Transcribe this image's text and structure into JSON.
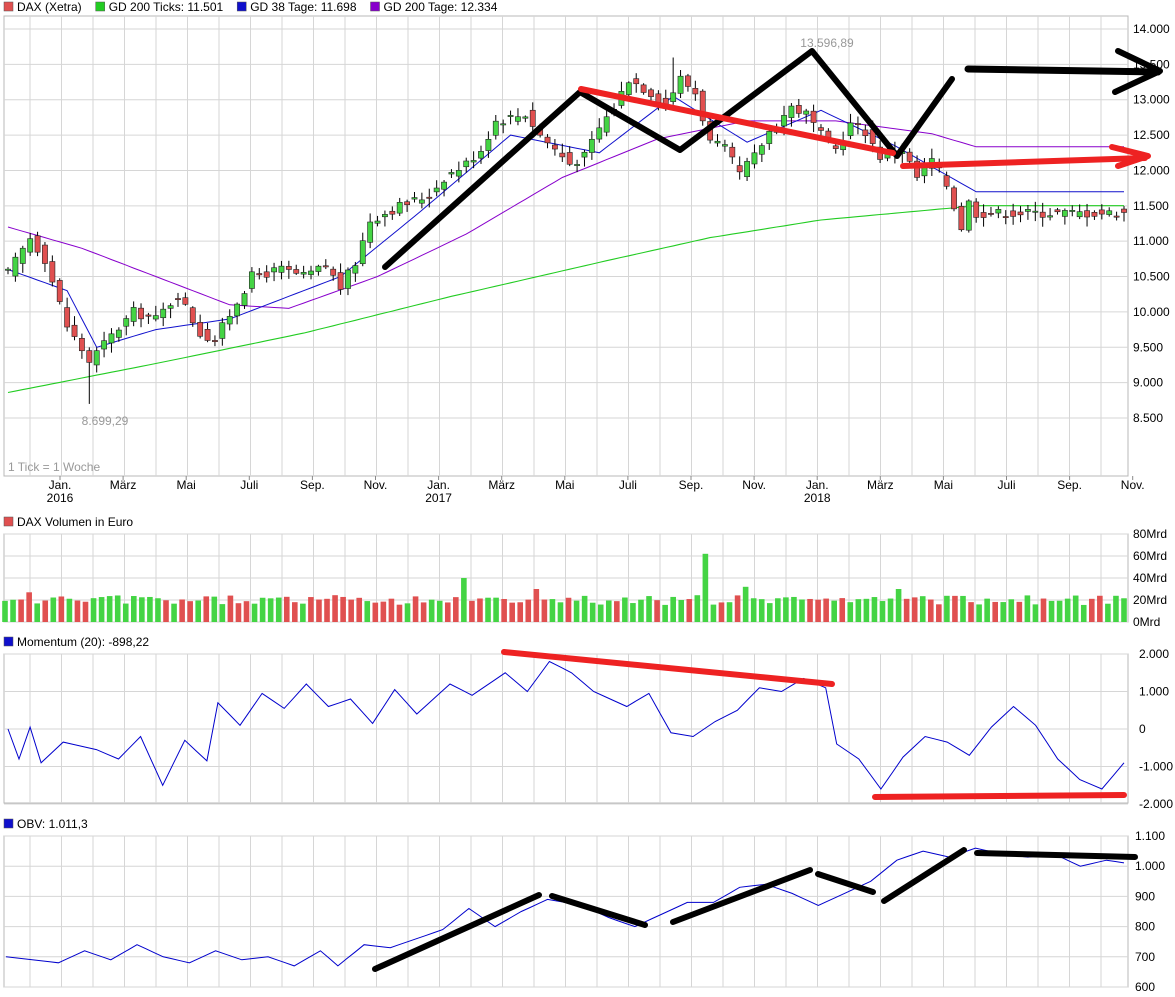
{
  "colors": {
    "up": "#44d444",
    "down": "#e05050",
    "wick": "#000000",
    "gd200_ticks": "#22cc22",
    "gd38": "#1010cc",
    "gd200_tage": "#8800cc",
    "grid": "#d6d6d6",
    "annot_black": "#000000",
    "annot_red": "#ee2222",
    "indicator_line": "#0000cc"
  },
  "price_panel": {
    "legend": [
      {
        "label": "DAX (Xetra)",
        "color": "#e05050"
      },
      {
        "label": "GD 200 Ticks: 11.501",
        "color": "#22cc22"
      },
      {
        "label": "GD 38 Tage: 11.698",
        "color": "#1010cc"
      },
      {
        "label": "GD 200 Tage: 12.334",
        "color": "#8800cc"
      }
    ],
    "y_ticks": [
      "14.000",
      "13.500",
      "13.000",
      "12.500",
      "12.000",
      "11.500",
      "11.000",
      "10.500",
      "10.000",
      "9.500",
      "9.000",
      "8.500"
    ],
    "high_label": "13.596,89",
    "low_label": "8.699,29",
    "tick_note": "1 Tick = 1 Woche",
    "x_months": [
      {
        "label": "Jan.",
        "year": "2016"
      },
      {
        "label": "März",
        "year": ""
      },
      {
        "label": "Mai",
        "year": ""
      },
      {
        "label": "Juli",
        "year": ""
      },
      {
        "label": "Sep.",
        "year": ""
      },
      {
        "label": "Nov.",
        "year": ""
      },
      {
        "label": "Jan.",
        "year": "2017"
      },
      {
        "label": "März",
        "year": ""
      },
      {
        "label": "Mai",
        "year": ""
      },
      {
        "label": "Juli",
        "year": ""
      },
      {
        "label": "Sep.",
        "year": ""
      },
      {
        "label": "Nov.",
        "year": ""
      },
      {
        "label": "Jan.",
        "year": "2018"
      },
      {
        "label": "März",
        "year": ""
      },
      {
        "label": "Mai",
        "year": ""
      },
      {
        "label": "Juli",
        "year": ""
      },
      {
        "label": "Sep.",
        "year": ""
      },
      {
        "label": "Nov.",
        "year": ""
      }
    ]
  },
  "volume_panel": {
    "title": "DAX Volumen in Euro",
    "y_ticks": [
      "80Mrd",
      "60Mrd",
      "40Mrd",
      "20Mrd",
      "0Mrd"
    ]
  },
  "momentum_panel": {
    "title": "Momentum (20): -898,22",
    "y_ticks": [
      "2.000",
      "1.000",
      "0",
      "-1.000",
      "-2.000"
    ]
  },
  "obv_panel": {
    "title": "OBV: 1.011,3",
    "y_ticks": [
      "1.100",
      "1.000",
      "900",
      "800",
      "700",
      "600"
    ]
  },
  "chart_data": [
    {
      "type": "candlestick",
      "title": "DAX (Xetra)",
      "note": "1 Tick = 1 Woche",
      "ylim": [
        8200,
        14200
      ],
      "x_start": "2015-12-07",
      "weeks": 152,
      "close_anchors": [
        [
          0,
          10550
        ],
        [
          3,
          11050
        ],
        [
          5,
          10750
        ],
        [
          8,
          9800
        ],
        [
          11,
          9300
        ],
        [
          13,
          9550
        ],
        [
          17,
          10000
        ],
        [
          20,
          9900
        ],
        [
          23,
          10250
        ],
        [
          26,
          9700
        ],
        [
          28,
          9600
        ],
        [
          31,
          10150
        ],
        [
          33,
          10500
        ],
        [
          37,
          10600
        ],
        [
          40,
          10500
        ],
        [
          43,
          10650
        ],
        [
          45,
          10350
        ],
        [
          47,
          10700
        ],
        [
          49,
          11300
        ],
        [
          53,
          11500
        ],
        [
          57,
          11650
        ],
        [
          59,
          11900
        ],
        [
          62,
          12100
        ],
        [
          64,
          12300
        ],
        [
          66,
          12700
        ],
        [
          70,
          12800
        ],
        [
          72,
          12500
        ],
        [
          76,
          12100
        ],
        [
          78,
          12200
        ],
        [
          80,
          12600
        ],
        [
          82,
          12900
        ],
        [
          84,
          13300
        ],
        [
          87,
          13100
        ],
        [
          89,
          12950
        ],
        [
          91,
          13300
        ],
        [
          93,
          13100
        ],
        [
          95,
          12400
        ],
        [
          97,
          12300
        ],
        [
          99,
          11950
        ],
        [
          101,
          12200
        ],
        [
          103,
          12550
        ],
        [
          106,
          12900
        ],
        [
          108,
          12800
        ],
        [
          110,
          12500
        ],
        [
          112,
          12300
        ],
        [
          114,
          12650
        ],
        [
          116,
          12550
        ],
        [
          118,
          12200
        ],
        [
          121,
          12300
        ],
        [
          123,
          11900
        ],
        [
          125,
          12150
        ],
        [
          127,
          11800
        ],
        [
          128,
          11500
        ],
        [
          129,
          11200
        ],
        [
          130,
          11550
        ],
        [
          131,
          11400
        ]
      ],
      "high": 13596.89,
      "low": 8699.29,
      "gd200_ticks_anchors": [
        [
          0,
          8860
        ],
        [
          20,
          9270
        ],
        [
          40,
          9700
        ],
        [
          60,
          10220
        ],
        [
          80,
          10700
        ],
        [
          95,
          11050
        ],
        [
          110,
          11300
        ],
        [
          131,
          11501
        ]
      ],
      "gd200_tage_anchors": [
        [
          0,
          11200
        ],
        [
          10,
          10900
        ],
        [
          20,
          10500
        ],
        [
          30,
          10100
        ],
        [
          38,
          10050
        ],
        [
          50,
          10500
        ],
        [
          62,
          11100
        ],
        [
          75,
          11900
        ],
        [
          88,
          12450
        ],
        [
          100,
          12700
        ],
        [
          112,
          12700
        ],
        [
          125,
          12520
        ],
        [
          131,
          12334
        ]
      ],
      "gd38_anchors": [
        [
          0,
          10600
        ],
        [
          8,
          10300
        ],
        [
          12,
          9500
        ],
        [
          20,
          9750
        ],
        [
          30,
          9900
        ],
        [
          45,
          10500
        ],
        [
          55,
          11350
        ],
        [
          68,
          12500
        ],
        [
          80,
          12250
        ],
        [
          90,
          13050
        ],
        [
          100,
          12400
        ],
        [
          110,
          12850
        ],
        [
          120,
          12350
        ],
        [
          131,
          11698
        ]
      ]
    },
    {
      "type": "bar",
      "title": "DAX Volumen in Euro",
      "ylim": [
        0,
        80
      ],
      "unit": "Mrd",
      "typical": 20,
      "spikes": [
        [
          3,
          27
        ],
        [
          57,
          40
        ],
        [
          66,
          30
        ],
        [
          84,
          20
        ],
        [
          87,
          62
        ],
        [
          92,
          32
        ],
        [
          111,
          30
        ]
      ]
    },
    {
      "type": "line",
      "title": "Momentum (20)",
      "ylim": [
        -2000,
        2000
      ],
      "last": -898.22,
      "anchors": [
        [
          0,
          0
        ],
        [
          1,
          -800
        ],
        [
          2,
          50
        ],
        [
          3,
          -900
        ],
        [
          5,
          -350
        ],
        [
          8,
          -550
        ],
        [
          10,
          -800
        ],
        [
          12,
          -200
        ],
        [
          14,
          -1500
        ],
        [
          16,
          -300
        ],
        [
          18,
          -850
        ],
        [
          19,
          700
        ],
        [
          21,
          100
        ],
        [
          23,
          950
        ],
        [
          25,
          550
        ],
        [
          27,
          1200
        ],
        [
          29,
          600
        ],
        [
          31,
          800
        ],
        [
          33,
          150
        ],
        [
          35,
          1050
        ],
        [
          37,
          400
        ],
        [
          40,
          1200
        ],
        [
          42,
          900
        ],
        [
          45,
          1500
        ],
        [
          47,
          1000
        ],
        [
          49,
          1800
        ],
        [
          51,
          1500
        ],
        [
          53,
          1000
        ],
        [
          56,
          600
        ],
        [
          58,
          950
        ],
        [
          60,
          -100
        ],
        [
          62,
          -200
        ],
        [
          64,
          200
        ],
        [
          66,
          500
        ],
        [
          68,
          1100
        ],
        [
          70,
          1000
        ],
        [
          72,
          1350
        ],
        [
          74,
          1100
        ],
        [
          75,
          -400
        ],
        [
          77,
          -800
        ],
        [
          79,
          -1600
        ],
        [
          81,
          -750
        ],
        [
          83,
          -200
        ],
        [
          85,
          -350
        ],
        [
          87,
          -700
        ],
        [
          89,
          50
        ],
        [
          91,
          600
        ],
        [
          93,
          100
        ],
        [
          95,
          -800
        ],
        [
          97,
          -1350
        ],
        [
          99,
          -1600
        ],
        [
          101,
          -900
        ]
      ]
    },
    {
      "type": "line",
      "title": "OBV",
      "ylim": [
        600,
        1100
      ],
      "last": 1011.3,
      "anchors": [
        [
          0,
          700
        ],
        [
          3,
          690
        ],
        [
          6,
          680
        ],
        [
          9,
          720
        ],
        [
          12,
          690
        ],
        [
          15,
          740
        ],
        [
          18,
          700
        ],
        [
          21,
          680
        ],
        [
          24,
          720
        ],
        [
          27,
          690
        ],
        [
          30,
          700
        ],
        [
          33,
          670
        ],
        [
          36,
          720
        ],
        [
          38,
          670
        ],
        [
          41,
          740
        ],
        [
          44,
          730
        ],
        [
          47,
          760
        ],
        [
          50,
          790
        ],
        [
          53,
          860
        ],
        [
          56,
          800
        ],
        [
          59,
          850
        ],
        [
          62,
          890
        ],
        [
          66,
          870
        ],
        [
          69,
          830
        ],
        [
          72,
          800
        ],
        [
          75,
          840
        ],
        [
          78,
          880
        ],
        [
          81,
          880
        ],
        [
          84,
          930
        ],
        [
          87,
          940
        ],
        [
          90,
          910
        ],
        [
          93,
          870
        ],
        [
          96,
          910
        ],
        [
          99,
          950
        ],
        [
          102,
          1020
        ],
        [
          105,
          1050
        ],
        [
          108,
          1030
        ],
        [
          111,
          1060
        ],
        [
          114,
          1040
        ],
        [
          117,
          1030
        ],
        [
          120,
          1040
        ],
        [
          123,
          1000
        ],
        [
          126,
          1020
        ],
        [
          128,
          1011
        ]
      ]
    }
  ]
}
